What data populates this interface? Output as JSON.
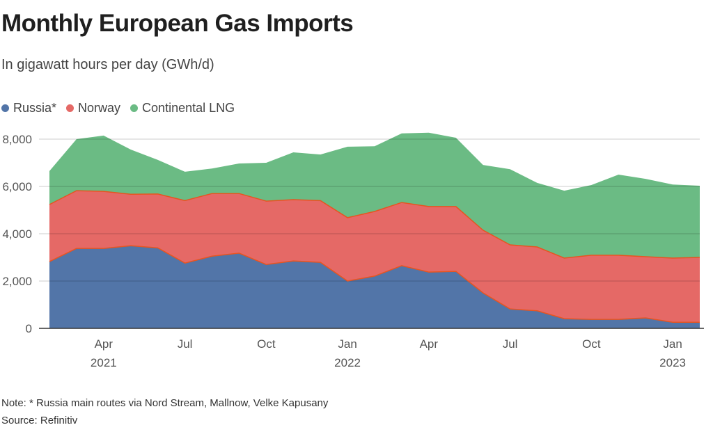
{
  "chart_data": {
    "type": "area",
    "stacked": true,
    "title": "Monthly European Gas Imports",
    "subtitle": "In gigawatt hours per day (GWh/d)",
    "xlabel": "",
    "ylabel": "",
    "ylim": [
      0,
      8000
    ],
    "yticks": [
      0,
      2000,
      4000,
      6000,
      8000
    ],
    "ytick_labels": [
      "0",
      "2,000",
      "4,000",
      "6,000",
      "8,000"
    ],
    "grid": true,
    "legend_position": "top-left",
    "x": [
      "Feb 2021",
      "Mar 2021",
      "Apr 2021",
      "May 2021",
      "Jun 2021",
      "Jul 2021",
      "Aug 2021",
      "Sep 2021",
      "Oct 2021",
      "Nov 2021",
      "Dec 2021",
      "Jan 2022",
      "Feb 2022",
      "Mar 2022",
      "Apr 2022",
      "May 2022",
      "Jun 2022",
      "Jul 2022",
      "Aug 2022",
      "Sep 2022",
      "Oct 2022",
      "Nov 2022",
      "Dec 2022",
      "Jan 2023",
      "Feb 2023"
    ],
    "xticks": [
      {
        "index": 2,
        "label": "Apr",
        "sublabel": "2021"
      },
      {
        "index": 5,
        "label": "Jul",
        "sublabel": ""
      },
      {
        "index": 8,
        "label": "Oct",
        "sublabel": ""
      },
      {
        "index": 11,
        "label": "Jan",
        "sublabel": "2022"
      },
      {
        "index": 14,
        "label": "Apr",
        "sublabel": ""
      },
      {
        "index": 17,
        "label": "Jul",
        "sublabel": ""
      },
      {
        "index": 20,
        "label": "Oct",
        "sublabel": ""
      },
      {
        "index": 23,
        "label": "Jan",
        "sublabel": "2023"
      }
    ],
    "series": [
      {
        "name": "Russia*",
        "color": "#5275a8",
        "values": [
          2820,
          3380,
          3380,
          3490,
          3400,
          2760,
          3050,
          3180,
          2700,
          2850,
          2790,
          2000,
          2210,
          2650,
          2380,
          2410,
          1500,
          820,
          740,
          410,
          380,
          380,
          440,
          260,
          260
        ]
      },
      {
        "name": "Norway",
        "color": "#e56966",
        "values": [
          2415,
          2440,
          2410,
          2180,
          2280,
          2640,
          2650,
          2520,
          2680,
          2590,
          2610,
          2680,
          2730,
          2670,
          2770,
          2740,
          2650,
          2710,
          2700,
          2560,
          2710,
          2710,
          2590,
          2710,
          2740
        ]
      },
      {
        "name": "Continental LNG",
        "color": "#6bbb84",
        "values": [
          1415,
          2180,
          2360,
          1890,
          1440,
          1220,
          1060,
          1270,
          1620,
          2000,
          1950,
          3000,
          2760,
          2920,
          3120,
          2910,
          2760,
          3200,
          2710,
          2850,
          2970,
          3410,
          3290,
          3110,
          3030
        ]
      }
    ]
  },
  "legend": [
    {
      "label": "Russia*",
      "color": "#5275a8"
    },
    {
      "label": "Norway",
      "color": "#e56966"
    },
    {
      "label": "Continental LNG",
      "color": "#6bbb84"
    }
  ],
  "footer": {
    "note": "Note: * Russia main routes via Nord Stream, Mallnow, Velke Kapusany",
    "source": "Source: Refinitiv"
  },
  "boundary_line_color": "#e8541f"
}
